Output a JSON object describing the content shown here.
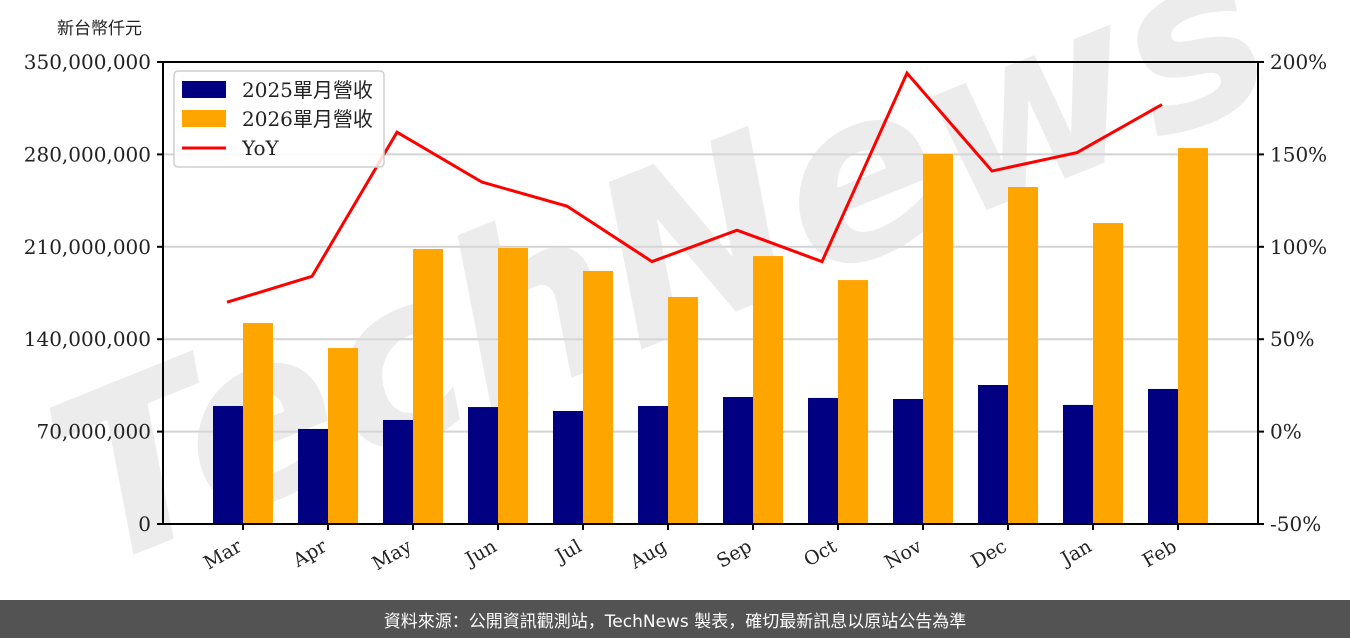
{
  "chart_data": {
    "type": "bar",
    "title": "",
    "ylabel": "新台幣仟元",
    "y2label": "",
    "xlabel": "",
    "categories": [
      "Mar",
      "Apr",
      "May",
      "Jun",
      "Jul",
      "Aug",
      "Sep",
      "Oct",
      "Nov",
      "Dec",
      "Jan",
      "Feb"
    ],
    "series": [
      {
        "name": "2025單月營收",
        "type": "bar",
        "color": "#000080",
        "values": [
          89400000,
          72000000,
          78800000,
          88600000,
          85600000,
          89400000,
          96200000,
          95500000,
          94700000,
          105300000,
          90200000,
          102300000
        ]
      },
      {
        "name": "2026單月營收",
        "type": "bar",
        "color": "#FFA500",
        "values": [
          152300000,
          133300000,
          208300000,
          209100000,
          191700000,
          172000000,
          203000000,
          184800000,
          280300000,
          255300000,
          228000000,
          284800000
        ]
      },
      {
        "name": "YoY",
        "type": "line",
        "axis": "right",
        "color": "#FF0000",
        "values": [
          70,
          84,
          162,
          135,
          122,
          92,
          109,
          92,
          194,
          141,
          151,
          177
        ]
      }
    ],
    "ylim": [
      0,
      350000000
    ],
    "yticks": [
      "0",
      "70,000,000",
      "140,000,000",
      "210,000,000",
      "280,000,000",
      "350,000,000"
    ],
    "y2lim": [
      -50,
      200
    ],
    "y2ticks": [
      "-50%",
      "0%",
      "50%",
      "100%",
      "150%",
      "200%"
    ],
    "grid": true,
    "legend_position": "upper left",
    "watermark": "TechNews"
  },
  "unit_label": "新台幣仟元",
  "footer": "資料來源：公開資訊觀測站，TechNews 製表，確切最新訊息以原站公告為準"
}
